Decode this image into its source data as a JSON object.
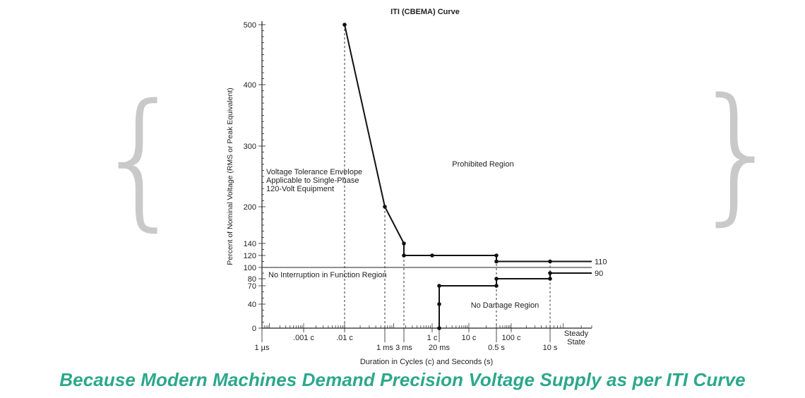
{
  "decor": {
    "left_brace": "{",
    "right_brace": "}",
    "brace_color": "#c9c9c9"
  },
  "caption": {
    "text": "Because Modern Machines Demand Precision Voltage Supply as per ITI Curve",
    "color": "#2ca88c"
  },
  "chart_data": {
    "type": "line",
    "title": "ITI (CBEMA) Curve",
    "ylabel": "Percent of Nominal Voltage (RMS or Peak Equivalent)",
    "xlabel": "Duration in Cycles (c) and Seconds (s)",
    "x_scale": "log",
    "x_unit": "cycles",
    "y_ticks": [
      0,
      40,
      70,
      80,
      100,
      120,
      140,
      200,
      300,
      400,
      500
    ],
    "y_range": [
      0,
      500
    ],
    "x_range": [
      6e-05,
      3000
    ],
    "upper_tick_labels": [
      {
        "x": 0.001,
        "label": ".001 c"
      },
      {
        "x": 0.01,
        "label": ".01 c"
      },
      {
        "x": 1,
        "label": "1 c"
      },
      {
        "x": 10,
        "label": "10 c"
      },
      {
        "x": 100,
        "label": "100 c"
      }
    ],
    "lower_tick_labels": [
      {
        "x": 6e-05,
        "label": "1 µs"
      },
      {
        "x": 0.06,
        "label": "1 ms"
      },
      {
        "x": 0.18,
        "label": "3 ms"
      },
      {
        "x": 1.2,
        "label": "20 ms"
      },
      {
        "x": 30,
        "label": "0.5 s"
      },
      {
        "x": 600,
        "label": "10 s"
      }
    ],
    "steady_state_label": [
      "Steady",
      "State"
    ],
    "reference_level": 100,
    "series": [
      {
        "points": [
          [
            0.01,
            500
          ],
          [
            0.06,
            200
          ],
          [
            0.18,
            140
          ],
          [
            0.18,
            120
          ],
          [
            1,
            120
          ],
          [
            30,
            120
          ],
          [
            30,
            110
          ],
          [
            600,
            110
          ],
          [
            3000,
            110
          ]
        ],
        "end_label": "110"
      },
      {
        "points": [
          [
            1.2,
            0
          ],
          [
            1.2,
            40
          ],
          [
            1.2,
            70
          ],
          [
            30,
            70
          ],
          [
            30,
            80
          ],
          [
            600,
            80
          ],
          [
            600,
            90
          ],
          [
            3000,
            90
          ]
        ],
        "end_label": "90"
      }
    ],
    "markers": [
      [
        0.01,
        500
      ],
      [
        0.06,
        200
      ],
      [
        0.18,
        140
      ],
      [
        0.18,
        120
      ],
      [
        1,
        120
      ],
      [
        30,
        120
      ],
      [
        30,
        110
      ],
      [
        600,
        110
      ],
      [
        1.2,
        0
      ],
      [
        1.2,
        40
      ],
      [
        1.2,
        70
      ],
      [
        30,
        70
      ],
      [
        30,
        80
      ],
      [
        600,
        80
      ],
      [
        600,
        90
      ]
    ],
    "dashed_verticals": [
      {
        "x": 0.01,
        "y_top": 500
      },
      {
        "x": 0.06,
        "y_top": 200
      },
      {
        "x": 0.18,
        "y_top": 120
      },
      {
        "x": 1.2,
        "y_top": 70
      },
      {
        "x": 30,
        "y_top": 120
      },
      {
        "x": 600,
        "y_top": 110
      }
    ],
    "annotations": [
      {
        "text": [
          "Voltage Tolerance Envelope",
          "Applicable to Single-Phase",
          "120-Volt Equipment"
        ]
      },
      {
        "text": [
          "Prohibited Region"
        ]
      },
      {
        "text": [
          "No Interruption in Function Region"
        ]
      },
      {
        "text": [
          "No Damage Region"
        ]
      }
    ]
  }
}
